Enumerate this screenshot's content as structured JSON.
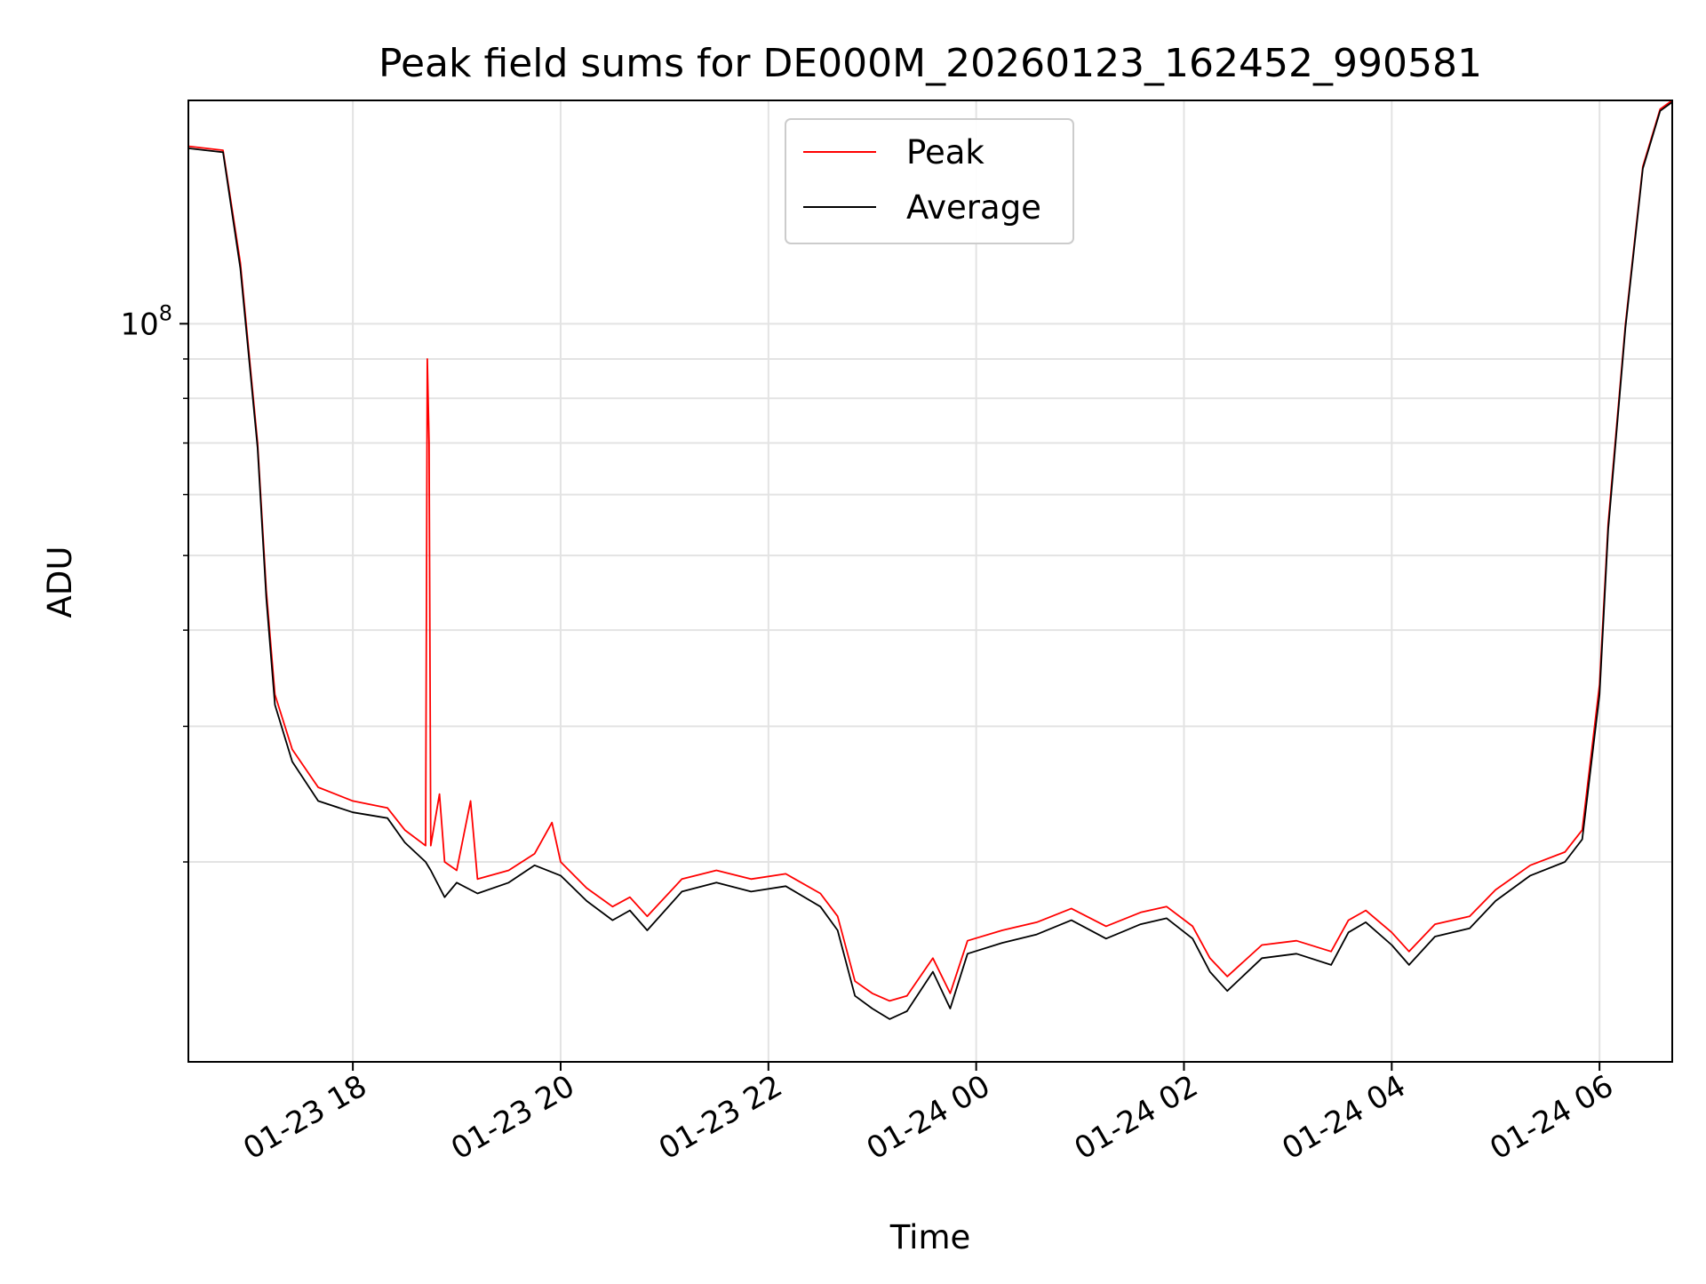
{
  "chart_data": {
    "type": "line",
    "title": "Peak field sums for DE000M_20260123_162452_990581",
    "xlabel": "Time",
    "ylabel": "ADU",
    "x_ticks": [
      "01-23 18",
      "01-23 20",
      "01-23 22",
      "01-24 00",
      "01-24 02",
      "01-24 04",
      "01-24 06"
    ],
    "x_range": [
      "2026-01-23 16:25",
      "2026-01-24 06:42"
    ],
    "y_scale": "log",
    "y_major_tick_labels": [
      {
        "value": 100000000,
        "base": "10",
        "exponent": "8"
      }
    ],
    "y_range": [
      11000000,
      195000000
    ],
    "grid": true,
    "legend": {
      "position": "upper-center",
      "entries": [
        "Peak",
        "Average"
      ]
    },
    "colors": {
      "Peak": "#ff0000",
      "Average": "#000000"
    },
    "series": [
      {
        "name": "Peak",
        "points": [
          [
            "2026-01-23 16:25",
            170000000
          ],
          [
            "2026-01-23 16:35",
            169000000
          ],
          [
            "2026-01-23 16:45",
            168000000
          ],
          [
            "2026-01-23 16:55",
            120000000
          ],
          [
            "2026-01-23 17:05",
            70000000
          ],
          [
            "2026-01-23 17:10",
            45000000
          ],
          [
            "2026-01-23 17:15",
            33000000
          ],
          [
            "2026-01-23 17:25",
            28000000
          ],
          [
            "2026-01-23 17:40",
            25000000
          ],
          [
            "2026-01-23 18:00",
            24000000
          ],
          [
            "2026-01-23 18:20",
            23500000
          ],
          [
            "2026-01-23 18:30",
            22000000
          ],
          [
            "2026-01-23 18:42",
            21000000
          ],
          [
            "2026-01-23 18:43",
            90000000
          ],
          [
            "2026-01-23 18:44",
            70000000
          ],
          [
            "2026-01-23 18:45",
            21000000
          ],
          [
            "2026-01-23 18:50",
            24500000
          ],
          [
            "2026-01-23 18:53",
            20000000
          ],
          [
            "2026-01-23 19:00",
            19500000
          ],
          [
            "2026-01-23 19:08",
            24000000
          ],
          [
            "2026-01-23 19:12",
            19000000
          ],
          [
            "2026-01-23 19:30",
            19500000
          ],
          [
            "2026-01-23 19:45",
            20500000
          ],
          [
            "2026-01-23 19:55",
            22500000
          ],
          [
            "2026-01-23 20:00",
            20000000
          ],
          [
            "2026-01-23 20:15",
            18500000
          ],
          [
            "2026-01-23 20:30",
            17500000
          ],
          [
            "2026-01-23 20:40",
            18000000
          ],
          [
            "2026-01-23 20:50",
            17000000
          ],
          [
            "2026-01-23 21:10",
            19000000
          ],
          [
            "2026-01-23 21:30",
            19500000
          ],
          [
            "2026-01-23 21:50",
            19000000
          ],
          [
            "2026-01-23 22:10",
            19300000
          ],
          [
            "2026-01-23 22:30",
            18200000
          ],
          [
            "2026-01-23 22:40",
            17000000
          ],
          [
            "2026-01-23 22:50",
            14000000
          ],
          [
            "2026-01-23 23:00",
            13500000
          ],
          [
            "2026-01-23 23:10",
            13200000
          ],
          [
            "2026-01-23 23:20",
            13400000
          ],
          [
            "2026-01-23 23:35",
            15000000
          ],
          [
            "2026-01-23 23:45",
            13500000
          ],
          [
            "2026-01-23 23:55",
            15800000
          ],
          [
            "2026-01-24 00:15",
            16300000
          ],
          [
            "2026-01-24 00:35",
            16700000
          ],
          [
            "2026-01-24 00:55",
            17400000
          ],
          [
            "2026-01-24 01:15",
            16500000
          ],
          [
            "2026-01-24 01:35",
            17200000
          ],
          [
            "2026-01-24 01:50",
            17500000
          ],
          [
            "2026-01-24 02:05",
            16500000
          ],
          [
            "2026-01-24 02:15",
            15000000
          ],
          [
            "2026-01-24 02:25",
            14200000
          ],
          [
            "2026-01-24 02:45",
            15600000
          ],
          [
            "2026-01-24 03:05",
            15800000
          ],
          [
            "2026-01-24 03:25",
            15300000
          ],
          [
            "2026-01-24 03:35",
            16800000
          ],
          [
            "2026-01-24 03:45",
            17300000
          ],
          [
            "2026-01-24 04:00",
            16200000
          ],
          [
            "2026-01-24 04:10",
            15300000
          ],
          [
            "2026-01-24 04:25",
            16600000
          ],
          [
            "2026-01-24 04:45",
            17000000
          ],
          [
            "2026-01-24 05:00",
            18400000
          ],
          [
            "2026-01-24 05:20",
            19800000
          ],
          [
            "2026-01-24 05:40",
            20600000
          ],
          [
            "2026-01-24 05:50",
            22000000
          ],
          [
            "2026-01-24 06:00",
            34000000
          ],
          [
            "2026-01-24 06:05",
            55000000
          ],
          [
            "2026-01-24 06:15",
            100000000
          ],
          [
            "2026-01-24 06:25",
            160000000
          ],
          [
            "2026-01-24 06:35",
            190000000
          ],
          [
            "2026-01-24 06:42",
            195000000
          ]
        ]
      },
      {
        "name": "Average",
        "points": [
          [
            "2026-01-23 16:25",
            169000000
          ],
          [
            "2026-01-23 16:35",
            168000000
          ],
          [
            "2026-01-23 16:45",
            167000000
          ],
          [
            "2026-01-23 16:55",
            118000000
          ],
          [
            "2026-01-23 17:05",
            69000000
          ],
          [
            "2026-01-23 17:10",
            44000000
          ],
          [
            "2026-01-23 17:15",
            32000000
          ],
          [
            "2026-01-23 17:25",
            27000000
          ],
          [
            "2026-01-23 17:40",
            24000000
          ],
          [
            "2026-01-23 18:00",
            23200000
          ],
          [
            "2026-01-23 18:20",
            22800000
          ],
          [
            "2026-01-23 18:30",
            21200000
          ],
          [
            "2026-01-23 18:42",
            20000000
          ],
          [
            "2026-01-23 18:45",
            19500000
          ],
          [
            "2026-01-23 18:53",
            18000000
          ],
          [
            "2026-01-23 19:00",
            18800000
          ],
          [
            "2026-01-23 19:12",
            18200000
          ],
          [
            "2026-01-23 19:30",
            18800000
          ],
          [
            "2026-01-23 19:45",
            19800000
          ],
          [
            "2026-01-23 20:00",
            19200000
          ],
          [
            "2026-01-23 20:15",
            17800000
          ],
          [
            "2026-01-23 20:30",
            16800000
          ],
          [
            "2026-01-23 20:40",
            17300000
          ],
          [
            "2026-01-23 20:50",
            16300000
          ],
          [
            "2026-01-23 21:10",
            18300000
          ],
          [
            "2026-01-23 21:30",
            18800000
          ],
          [
            "2026-01-23 21:50",
            18300000
          ],
          [
            "2026-01-23 22:10",
            18600000
          ],
          [
            "2026-01-23 22:30",
            17500000
          ],
          [
            "2026-01-23 22:40",
            16300000
          ],
          [
            "2026-01-23 22:50",
            13400000
          ],
          [
            "2026-01-23 23:00",
            12900000
          ],
          [
            "2026-01-23 23:10",
            12500000
          ],
          [
            "2026-01-23 23:20",
            12800000
          ],
          [
            "2026-01-23 23:35",
            14400000
          ],
          [
            "2026-01-23 23:45",
            12900000
          ],
          [
            "2026-01-23 23:55",
            15200000
          ],
          [
            "2026-01-24 00:15",
            15700000
          ],
          [
            "2026-01-24 00:35",
            16100000
          ],
          [
            "2026-01-24 00:55",
            16800000
          ],
          [
            "2026-01-24 01:15",
            15900000
          ],
          [
            "2026-01-24 01:35",
            16600000
          ],
          [
            "2026-01-24 01:50",
            16900000
          ],
          [
            "2026-01-24 02:05",
            15900000
          ],
          [
            "2026-01-24 02:15",
            14400000
          ],
          [
            "2026-01-24 02:25",
            13600000
          ],
          [
            "2026-01-24 02:45",
            15000000
          ],
          [
            "2026-01-24 03:05",
            15200000
          ],
          [
            "2026-01-24 03:25",
            14700000
          ],
          [
            "2026-01-24 03:35",
            16200000
          ],
          [
            "2026-01-24 03:45",
            16700000
          ],
          [
            "2026-01-24 04:00",
            15600000
          ],
          [
            "2026-01-24 04:10",
            14700000
          ],
          [
            "2026-01-24 04:25",
            16000000
          ],
          [
            "2026-01-24 04:45",
            16400000
          ],
          [
            "2026-01-24 05:00",
            17800000
          ],
          [
            "2026-01-24 05:20",
            19200000
          ],
          [
            "2026-01-24 05:40",
            20000000
          ],
          [
            "2026-01-24 05:50",
            21400000
          ],
          [
            "2026-01-24 06:00",
            33000000
          ],
          [
            "2026-01-24 06:05",
            54000000
          ],
          [
            "2026-01-24 06:15",
            99000000
          ],
          [
            "2026-01-24 06:25",
            159000000
          ],
          [
            "2026-01-24 06:35",
            189000000
          ],
          [
            "2026-01-24 06:42",
            194000000
          ]
        ]
      }
    ]
  }
}
